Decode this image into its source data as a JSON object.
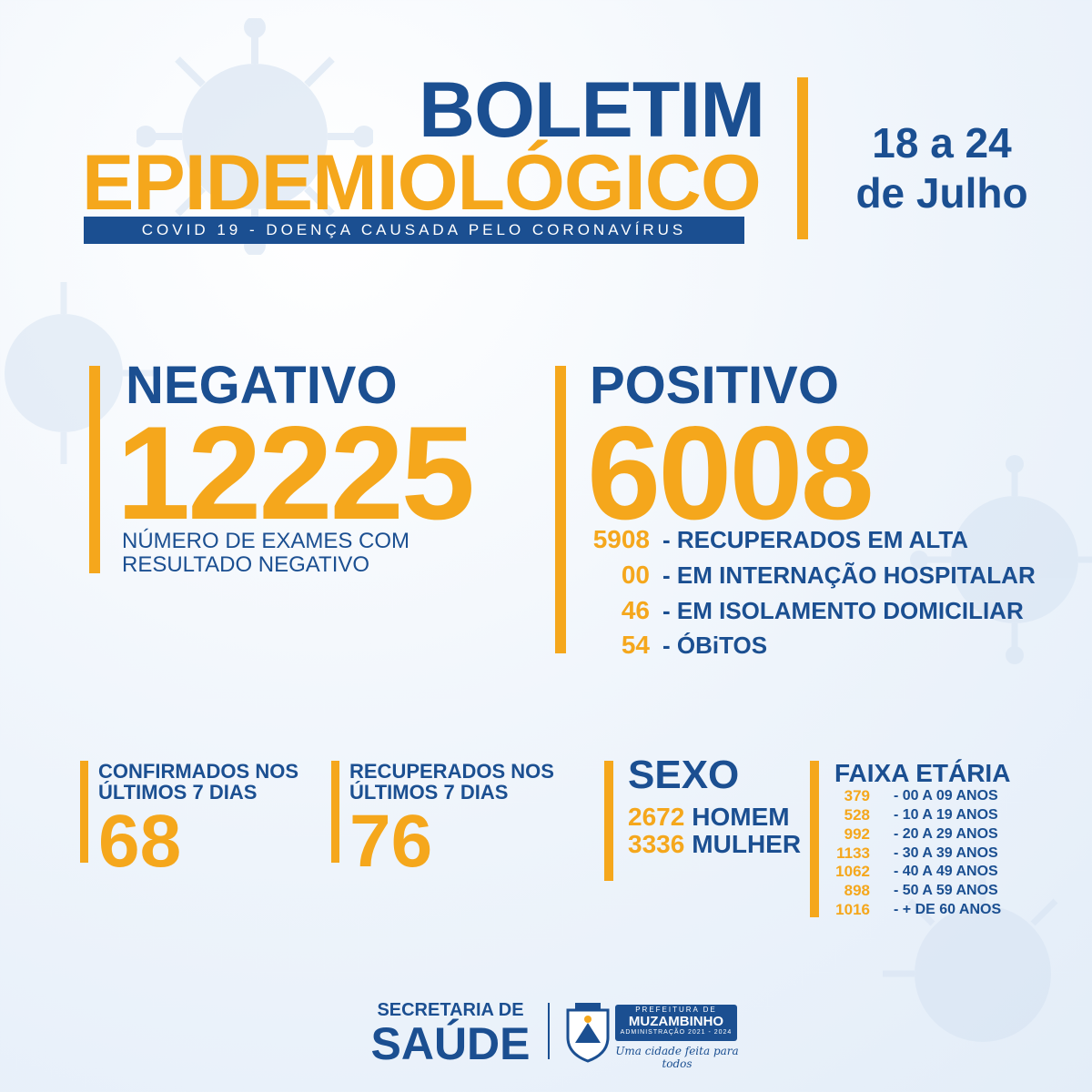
{
  "header": {
    "title_line1": "BOLETIM",
    "title_line2": "EPIDEMIOLÓGICO",
    "subtitle": "COVID 19 - DOENÇA CAUSADA PELO CORONAVÍRUS",
    "date_line1": "18 a 24",
    "date_line2": "de Julho"
  },
  "negative": {
    "label": "NEGATIVO",
    "value": "12225",
    "description_line1": "NÚMERO DE EXAMES COM",
    "description_line2": "RESULTADO NEGATIVO"
  },
  "positive": {
    "label": "POSITIVO",
    "value": "6008",
    "breakdown": [
      {
        "value": "5908",
        "label": "- RECUPERADOS EM ALTA"
      },
      {
        "value": "00",
        "label": "- EM INTERNAÇÃO HOSPITALAR"
      },
      {
        "value": "46",
        "label": "- EM ISOLAMENTO DOMICILIAR"
      },
      {
        "value": "54",
        "label": "- ÓBiTOS"
      }
    ]
  },
  "confirmed_7days": {
    "label_line1": "CONFIRMADOS NOS",
    "label_line2": "ÚLTIMOS 7 DIAS",
    "value": "68"
  },
  "recovered_7days": {
    "label_line1": "RECUPERADOS NOS",
    "label_line2": "ÚLTIMOS 7 DIAS",
    "value": "76"
  },
  "sexo": {
    "label": "SEXO",
    "rows": [
      {
        "value": "2672",
        "label": "HOMEM"
      },
      {
        "value": "3336",
        "label": "MULHER"
      }
    ]
  },
  "faixa_etaria": {
    "label": "FAIXA ETÁRIA",
    "rows": [
      {
        "value": "379",
        "label": "- 00 A 09 ANOS"
      },
      {
        "value": "528",
        "label": "- 10 A 19 ANOS"
      },
      {
        "value": "992",
        "label": "- 20 A 29 ANOS"
      },
      {
        "value": "1133",
        "label": "- 30 A 39 ANOS"
      },
      {
        "value": "1062",
        "label": "- 40 A 49 ANOS"
      },
      {
        "value": "898",
        "label": "- 50 A 59 ANOS"
      },
      {
        "value": "1016",
        "label": "- + DE 60 ANOS"
      }
    ]
  },
  "footer": {
    "secretaria_line1": "SECRETARIA DE",
    "secretaria_line2": "SAÚDE",
    "logo_top": "PREFEITURA DE",
    "logo_name": "MUZAMBINHO",
    "logo_admin": "ADMINISTRAÇÃO 2021 - 2024",
    "logo_slogan": "Uma cidade feita para todos"
  },
  "colors": {
    "primary_blue": "#1b4f91",
    "accent_orange": "#f5a71c"
  }
}
